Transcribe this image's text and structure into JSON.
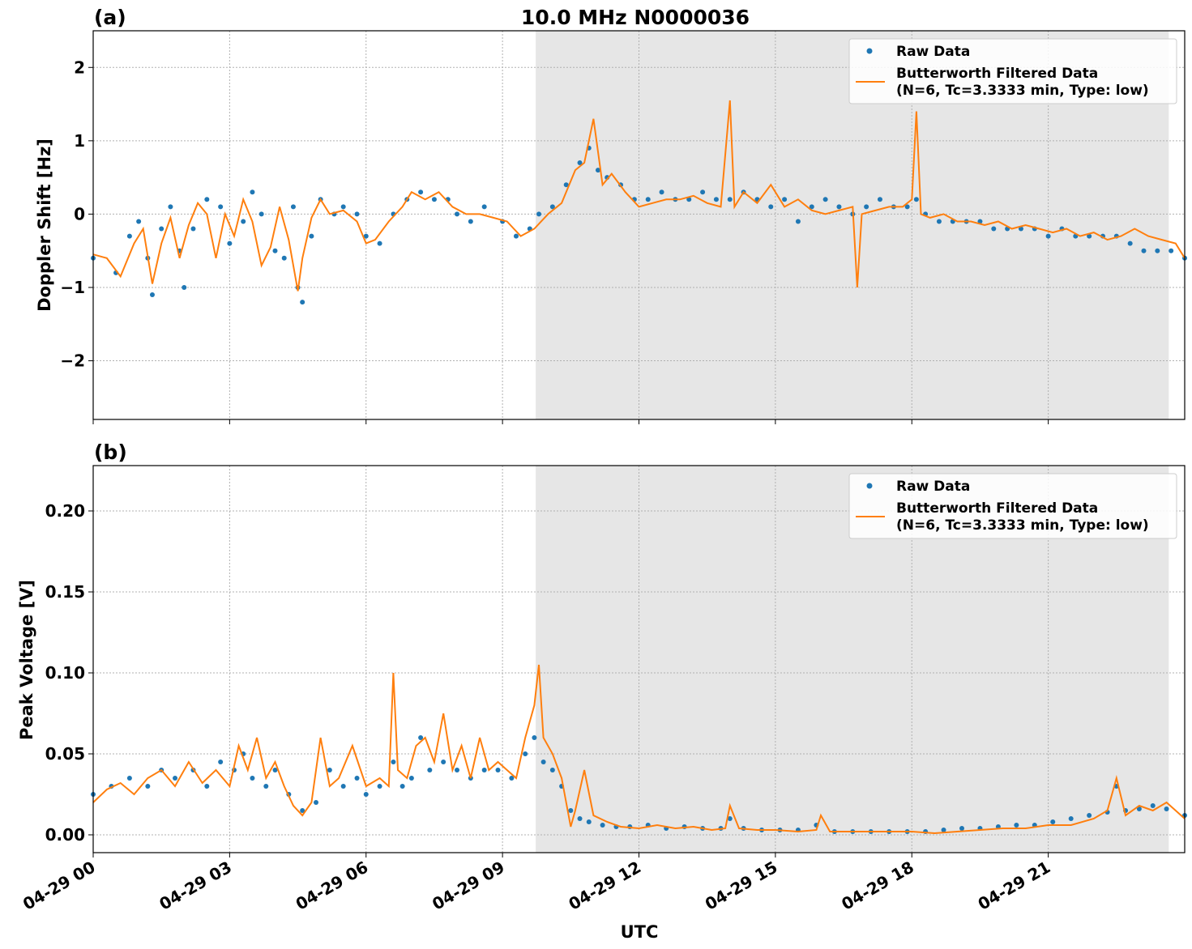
{
  "figure": {
    "title": "10.0 MHz N0000036",
    "xlabel": "UTC"
  },
  "colors": {
    "raw": "#1f77b4",
    "filtered": "#ff7f0e",
    "night_shade": "#e6e6e6"
  },
  "legend": {
    "raw_label": "Raw Data",
    "filtered_label_line1": "Butterworth Filtered Data",
    "filtered_label_line2": "(N=6, Tc=3.3333 min, Type: low)"
  },
  "x_axis": {
    "range_hours": [
      0,
      24
    ],
    "tick_hours": [
      0,
      3,
      6,
      9,
      12,
      15,
      18,
      21
    ],
    "tick_labels": [
      "04-29 00",
      "04-29 03",
      "04-29 06",
      "04-29 09",
      "04-29 12",
      "04-29 15",
      "04-29 18",
      "04-29 21"
    ],
    "shaded_span_hours": [
      9.73,
      23.65
    ]
  },
  "chart_data": [
    {
      "type": "scatter",
      "panel_label": "(a)",
      "ylabel": "Doppler Shift [Hz]",
      "ylim": [
        -2.8,
        2.5
      ],
      "y_ticks": [
        -2,
        -1,
        0,
        1,
        2
      ],
      "y_tick_labels": [
        "−2",
        "−1",
        "0",
        "1",
        "2"
      ],
      "grid": true,
      "legend_position": "top-right",
      "series": [
        {
          "name": "Raw Data",
          "marker": "dot",
          "x_hours": [
            0,
            0.5,
            0.8,
            1.0,
            1.2,
            1.3,
            1.5,
            1.7,
            1.9,
            2.0,
            2.2,
            2.5,
            2.8,
            3.0,
            3.3,
            3.5,
            3.7,
            4.0,
            4.2,
            4.4,
            4.5,
            4.6,
            4.8,
            5.0,
            5.3,
            5.5,
            5.8,
            6.0,
            6.3,
            6.6,
            6.9,
            7.2,
            7.5,
            7.8,
            8.0,
            8.3,
            8.6,
            9.0,
            9.3,
            9.6,
            9.8,
            10.1,
            10.4,
            10.7,
            10.9,
            11.1,
            11.3,
            11.6,
            11.9,
            12.2,
            12.5,
            12.8,
            13.1,
            13.4,
            13.7,
            14.0,
            14.3,
            14.6,
            14.9,
            15.2,
            15.5,
            15.8,
            16.1,
            16.4,
            16.7,
            17.0,
            17.3,
            17.6,
            17.9,
            18.1,
            18.3,
            18.6,
            18.9,
            19.2,
            19.5,
            19.8,
            20.1,
            20.4,
            20.7,
            21.0,
            21.3,
            21.6,
            21.9,
            22.2,
            22.5,
            22.8,
            23.1,
            23.4,
            23.7,
            24.0
          ],
          "y": [
            -0.6,
            -0.8,
            -0.3,
            -0.1,
            -0.6,
            -1.1,
            -0.2,
            0.1,
            -0.5,
            -1.0,
            -0.2,
            0.2,
            0.1,
            -0.4,
            -0.1,
            0.3,
            0.0,
            -0.5,
            -0.6,
            0.1,
            -1.0,
            -1.2,
            -0.3,
            0.2,
            0.0,
            0.1,
            0.0,
            -0.3,
            -0.4,
            0.0,
            0.2,
            0.3,
            0.2,
            0.2,
            0.0,
            -0.1,
            0.1,
            -0.1,
            -0.3,
            -0.2,
            0.0,
            0.1,
            0.4,
            0.7,
            0.9,
            0.6,
            0.5,
            0.4,
            0.2,
            0.2,
            0.3,
            0.2,
            0.2,
            0.3,
            0.2,
            0.2,
            0.3,
            0.2,
            0.1,
            0.2,
            -0.1,
            0.1,
            0.2,
            0.1,
            0.0,
            0.1,
            0.2,
            0.1,
            0.1,
            0.2,
            0.0,
            -0.1,
            -0.1,
            -0.1,
            -0.1,
            -0.2,
            -0.2,
            -0.2,
            -0.2,
            -0.3,
            -0.2,
            -0.3,
            -0.3,
            -0.3,
            -0.3,
            -0.4,
            -0.5,
            -0.5,
            -0.5,
            -0.6
          ]
        },
        {
          "name": "Butterworth Filtered Data\n(N=6, Tc=3.3333 min, Type: low)",
          "marker": "line",
          "x_hours": [
            0,
            0.3,
            0.6,
            0.9,
            1.1,
            1.3,
            1.5,
            1.7,
            1.9,
            2.1,
            2.3,
            2.5,
            2.7,
            2.9,
            3.1,
            3.3,
            3.5,
            3.7,
            3.9,
            4.1,
            4.3,
            4.5,
            4.6,
            4.8,
            5.0,
            5.2,
            5.5,
            5.8,
            6.0,
            6.2,
            6.5,
            6.8,
            7.0,
            7.3,
            7.6,
            7.9,
            8.2,
            8.5,
            8.8,
            9.1,
            9.4,
            9.7,
            10.0,
            10.3,
            10.6,
            10.8,
            11.0,
            11.2,
            11.4,
            11.7,
            12.0,
            12.3,
            12.6,
            12.9,
            13.2,
            13.5,
            13.8,
            14.0,
            14.1,
            14.3,
            14.6,
            14.9,
            15.2,
            15.5,
            15.8,
            16.1,
            16.4,
            16.7,
            16.8,
            16.9,
            17.2,
            17.5,
            17.8,
            18.0,
            18.1,
            18.2,
            18.4,
            18.7,
            19.0,
            19.3,
            19.6,
            19.9,
            20.2,
            20.5,
            20.8,
            21.1,
            21.4,
            21.7,
            22.0,
            22.3,
            22.6,
            22.9,
            23.2,
            23.5,
            23.8,
            24.0
          ],
          "y": [
            -0.55,
            -0.6,
            -0.85,
            -0.4,
            -0.2,
            -0.95,
            -0.4,
            -0.05,
            -0.6,
            -0.15,
            0.15,
            0.0,
            -0.6,
            0.0,
            -0.3,
            0.2,
            -0.1,
            -0.7,
            -0.45,
            0.1,
            -0.35,
            -1.05,
            -0.6,
            -0.05,
            0.2,
            0.0,
            0.05,
            -0.1,
            -0.4,
            -0.35,
            -0.1,
            0.1,
            0.3,
            0.2,
            0.3,
            0.1,
            0.0,
            0.0,
            -0.05,
            -0.1,
            -0.3,
            -0.2,
            0.0,
            0.15,
            0.6,
            0.7,
            1.3,
            0.4,
            0.55,
            0.3,
            0.1,
            0.15,
            0.2,
            0.2,
            0.25,
            0.15,
            0.1,
            1.55,
            0.1,
            0.3,
            0.15,
            0.4,
            0.1,
            0.2,
            0.05,
            0.0,
            0.05,
            0.1,
            -1.0,
            0.0,
            0.05,
            0.1,
            0.1,
            0.2,
            1.4,
            0.0,
            -0.05,
            0.0,
            -0.1,
            -0.1,
            -0.15,
            -0.1,
            -0.2,
            -0.15,
            -0.2,
            -0.25,
            -0.2,
            -0.3,
            -0.25,
            -0.35,
            -0.3,
            -0.2,
            -0.3,
            -0.35,
            -0.4,
            -0.6
          ]
        }
      ]
    },
    {
      "type": "scatter",
      "panel_label": "(b)",
      "ylabel": "Peak Voltage [V]",
      "ylim": [
        -0.011,
        0.228
      ],
      "y_ticks": [
        0.0,
        0.05,
        0.1,
        0.15,
        0.2
      ],
      "y_tick_labels": [
        "0.00",
        "0.05",
        "0.10",
        "0.15",
        "0.20"
      ],
      "grid": true,
      "legend_position": "top-right",
      "series": [
        {
          "name": "Raw Data",
          "marker": "dot",
          "x_hours": [
            0,
            0.4,
            0.8,
            1.2,
            1.5,
            1.8,
            2.2,
            2.5,
            2.8,
            3.1,
            3.3,
            3.5,
            3.8,
            4.0,
            4.3,
            4.6,
            4.9,
            5.2,
            5.5,
            5.8,
            6.0,
            6.3,
            6.6,
            6.8,
            7.0,
            7.2,
            7.4,
            7.7,
            8.0,
            8.3,
            8.6,
            8.9,
            9.2,
            9.5,
            9.7,
            9.9,
            10.1,
            10.3,
            10.5,
            10.7,
            10.9,
            11.2,
            11.5,
            11.8,
            12.2,
            12.6,
            13.0,
            13.4,
            13.8,
            14.0,
            14.3,
            14.7,
            15.1,
            15.5,
            15.9,
            16.3,
            16.7,
            17.1,
            17.5,
            17.9,
            18.3,
            18.7,
            19.1,
            19.5,
            19.9,
            20.3,
            20.7,
            21.1,
            21.5,
            21.9,
            22.3,
            22.5,
            22.7,
            23.0,
            23.3,
            23.6,
            24.0
          ],
          "y": [
            0.025,
            0.03,
            0.035,
            0.03,
            0.04,
            0.035,
            0.04,
            0.03,
            0.045,
            0.04,
            0.05,
            0.035,
            0.03,
            0.04,
            0.025,
            0.015,
            0.02,
            0.04,
            0.03,
            0.035,
            0.025,
            0.03,
            0.045,
            0.03,
            0.035,
            0.06,
            0.04,
            0.045,
            0.04,
            0.035,
            0.04,
            0.04,
            0.035,
            0.05,
            0.06,
            0.045,
            0.04,
            0.03,
            0.015,
            0.01,
            0.008,
            0.006,
            0.005,
            0.005,
            0.006,
            0.004,
            0.005,
            0.004,
            0.004,
            0.01,
            0.004,
            0.003,
            0.003,
            0.003,
            0.006,
            0.002,
            0.002,
            0.002,
            0.002,
            0.002,
            0.002,
            0.003,
            0.004,
            0.004,
            0.005,
            0.006,
            0.006,
            0.008,
            0.01,
            0.012,
            0.014,
            0.03,
            0.015,
            0.016,
            0.018,
            0.016,
            0.012
          ]
        },
        {
          "name": "Butterworth Filtered Data\n(N=6, Tc=3.3333 min, Type: low)",
          "marker": "line",
          "x_hours": [
            0,
            0.3,
            0.6,
            0.9,
            1.2,
            1.5,
            1.8,
            2.1,
            2.4,
            2.7,
            3.0,
            3.2,
            3.4,
            3.6,
            3.8,
            4.0,
            4.2,
            4.4,
            4.6,
            4.8,
            5.0,
            5.2,
            5.4,
            5.7,
            6.0,
            6.3,
            6.5,
            6.6,
            6.7,
            6.9,
            7.1,
            7.3,
            7.5,
            7.7,
            7.9,
            8.1,
            8.3,
            8.5,
            8.7,
            8.9,
            9.1,
            9.3,
            9.5,
            9.7,
            9.8,
            9.9,
            10.1,
            10.3,
            10.4,
            10.5,
            10.6,
            10.8,
            11.0,
            11.3,
            11.6,
            12.0,
            12.4,
            12.8,
            13.2,
            13.6,
            13.9,
            14.0,
            14.2,
            14.6,
            15.0,
            15.5,
            15.9,
            16.0,
            16.2,
            16.6,
            17.0,
            17.5,
            18.0,
            18.5,
            19.0,
            19.5,
            20.0,
            20.5,
            21.0,
            21.5,
            22.0,
            22.3,
            22.5,
            22.7,
            23.0,
            23.3,
            23.6,
            24.0
          ],
          "y": [
            0.02,
            0.028,
            0.032,
            0.025,
            0.035,
            0.04,
            0.03,
            0.045,
            0.032,
            0.04,
            0.03,
            0.055,
            0.04,
            0.06,
            0.035,
            0.045,
            0.03,
            0.018,
            0.012,
            0.02,
            0.06,
            0.03,
            0.035,
            0.055,
            0.03,
            0.035,
            0.03,
            0.1,
            0.04,
            0.035,
            0.055,
            0.06,
            0.045,
            0.075,
            0.04,
            0.055,
            0.035,
            0.06,
            0.04,
            0.045,
            0.04,
            0.035,
            0.06,
            0.08,
            0.105,
            0.06,
            0.05,
            0.035,
            0.02,
            0.005,
            0.015,
            0.04,
            0.012,
            0.008,
            0.005,
            0.004,
            0.006,
            0.004,
            0.005,
            0.003,
            0.004,
            0.018,
            0.004,
            0.003,
            0.003,
            0.002,
            0.003,
            0.012,
            0.002,
            0.002,
            0.002,
            0.002,
            0.002,
            0.001,
            0.002,
            0.003,
            0.004,
            0.004,
            0.006,
            0.006,
            0.01,
            0.015,
            0.035,
            0.012,
            0.018,
            0.015,
            0.02,
            0.01
          ]
        }
      ]
    }
  ]
}
